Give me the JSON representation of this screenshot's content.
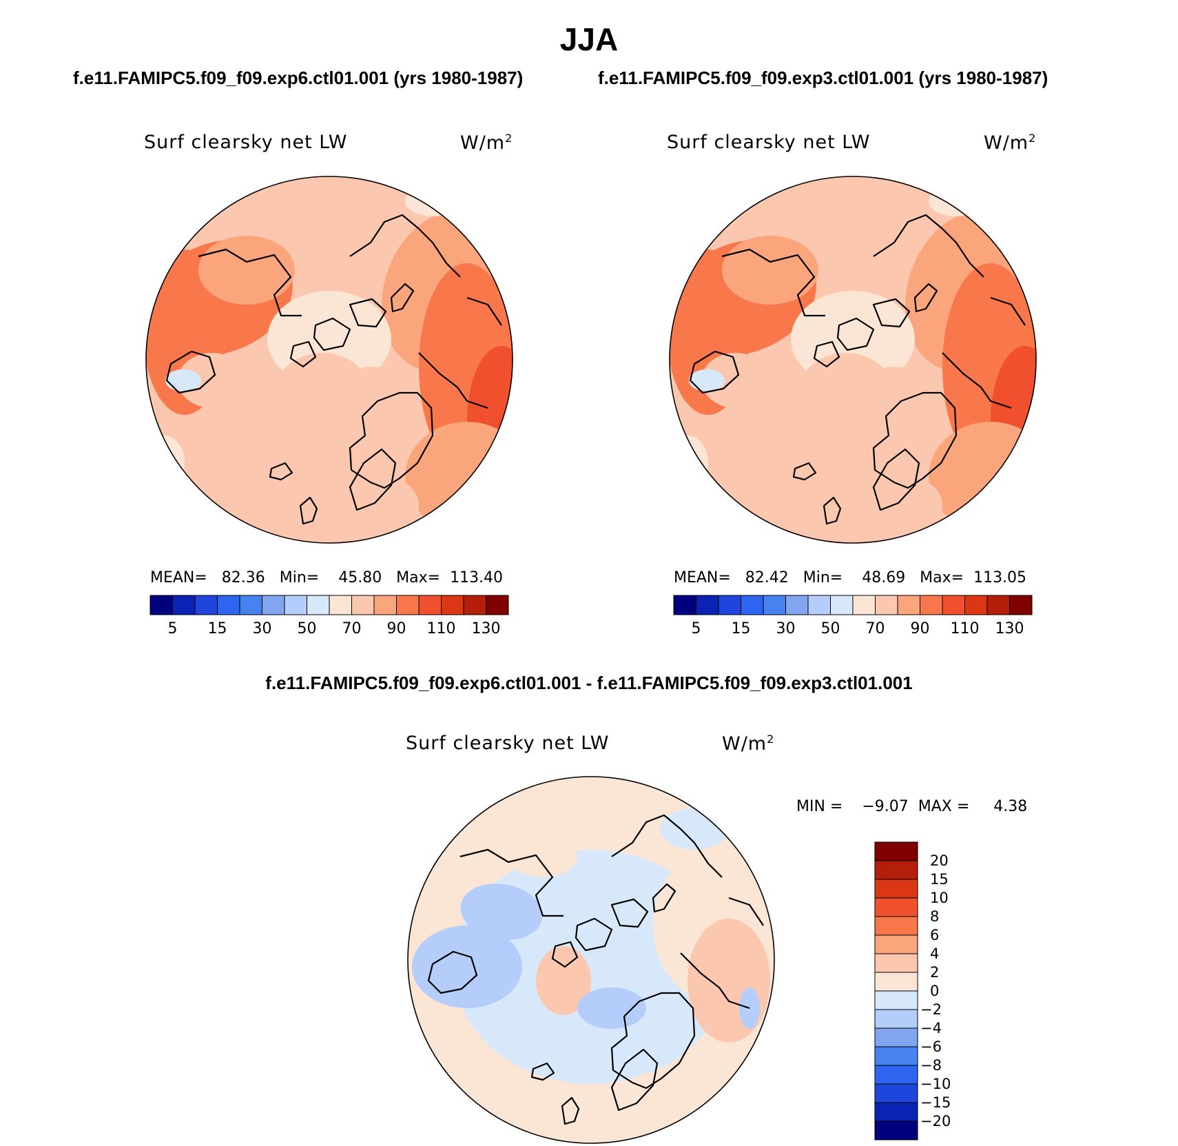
{
  "figure": {
    "title": "JJA"
  },
  "panels": [
    {
      "run_title": "f.e11.FAMIPC5.f09_f09.exp6.ctl01.001 (yrs 1980-1987)",
      "variable": "Surf clearsky net LW",
      "units": "W/m",
      "units_exp": "2",
      "stats": "MEAN=   82.36   Min=    45.80   Max=  113.40",
      "colorbar_labels": [
        "5",
        "15",
        "30",
        "50",
        "70",
        "90",
        "110",
        "130"
      ]
    },
    {
      "run_title": "f.e11.FAMIPC5.f09_f09.exp3.ctl01.001 (yrs 1980-1987)",
      "variable": "Surf clearsky net LW",
      "units": "W/m",
      "units_exp": "2",
      "stats": "MEAN=   82.42   Min=    48.69   Max=  113.05",
      "colorbar_labels": [
        "5",
        "15",
        "30",
        "50",
        "70",
        "90",
        "110",
        "130"
      ]
    }
  ],
  "difference": {
    "title": "f.e11.FAMIPC5.f09_f09.exp6.ctl01.001 - f.e11.FAMIPC5.f09_f09.exp3.ctl01.001",
    "variable": "Surf clearsky net LW",
    "units": "W/m",
    "units_exp": "2",
    "stats": "MIN =    −9.07  MAX =     4.38",
    "colorbar_labels": [
      "20",
      "15",
      "10",
      "8",
      "6",
      "4",
      "2",
      "0",
      "−2",
      "−4",
      "−6",
      "−8",
      "−10",
      "−15",
      "−20"
    ]
  },
  "colormaps": {
    "field": [
      "#00007f",
      "#0a23b4",
      "#1e46dc",
      "#2d64f0",
      "#4682f0",
      "#82a5f0",
      "#b4cdfa",
      "#d7e8fa",
      "#fbe6d5",
      "#fbc8af",
      "#fba57d",
      "#f8784b",
      "#f0502d",
      "#dc3714",
      "#b41e0a",
      "#800000"
    ],
    "diff": [
      "#800000",
      "#b41e0a",
      "#dc3714",
      "#f0502d",
      "#f8784b",
      "#fba57d",
      "#fbc8af",
      "#fbe6d5",
      "#d7e8fa",
      "#b4cdfa",
      "#82a5f0",
      "#4682f0",
      "#2d64f0",
      "#1e46dc",
      "#0a23b4",
      "#00007f"
    ]
  }
}
